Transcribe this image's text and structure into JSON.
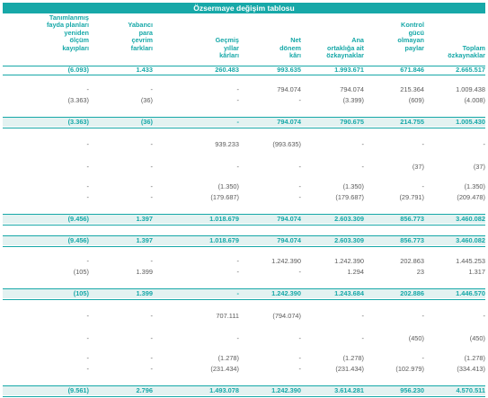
{
  "title": "Özsermaye değişim tablosu",
  "columns": [
    [
      "Tanımlanmış",
      "fayda planları",
      "yeniden",
      "ölçüm",
      "kayıpları"
    ],
    [
      "Yabancı",
      "para",
      "çevrim",
      "farkları"
    ],
    [
      "Geçmiş",
      "yıllar",
      "kârları"
    ],
    [
      "Net",
      "dönem",
      "kârı"
    ],
    [
      "Ana",
      "ortaklığa ait",
      "özkaynaklar"
    ],
    [
      "Kontrol",
      "gücü",
      "olmayan",
      "paylar"
    ],
    [
      "Toplam",
      "özkaynaklar"
    ]
  ],
  "rows": [
    {
      "bold": true,
      "cells": [
        "(6.093)",
        "1.433",
        "260.483",
        "993.635",
        "1.993.671",
        "671.846",
        "2.665.517"
      ]
    },
    {
      "bold": false,
      "cells": [
        "-",
        "-",
        "-",
        "794.074",
        "794.074",
        "215.364",
        "1.009.438"
      ]
    },
    {
      "bold": false,
      "cells": [
        "(3.363)",
        "(36)",
        "-",
        "-",
        "(3.399)",
        "(609)",
        "(4.008)"
      ]
    },
    {
      "bold": true,
      "cells": [
        "(3.363)",
        "(36)",
        "-",
        "794.074",
        "790.675",
        "214.755",
        "1.005.430"
      ]
    },
    {
      "bold": false,
      "cells": [
        "-",
        "-",
        "939.233",
        "(993.635)",
        "-",
        "-",
        "-"
      ]
    },
    {
      "bold": false,
      "cells": [
        "-",
        "-",
        "-",
        "-",
        "-",
        "(37)",
        "(37)"
      ]
    },
    {
      "bold": false,
      "cells": [
        "-",
        "-",
        "(1.350)",
        "-",
        "(1.350)",
        "-",
        "(1.350)"
      ]
    },
    {
      "bold": false,
      "cells": [
        "-",
        "-",
        "(179.687)",
        "-",
        "(179.687)",
        "(29.791)",
        "(209.478)"
      ]
    },
    {
      "bold": true,
      "cells": [
        "(9.456)",
        "1.397",
        "1.018.679",
        "794.074",
        "2.603.309",
        "856.773",
        "3.460.082"
      ]
    },
    {
      "bold": true,
      "cells": [
        "(9.456)",
        "1.397",
        "1.018.679",
        "794.074",
        "2.603.309",
        "856.773",
        "3.460.082"
      ]
    },
    {
      "bold": false,
      "cells": [
        "-",
        "-",
        "-",
        "1.242.390",
        "1.242.390",
        "202.863",
        "1.445.253"
      ]
    },
    {
      "bold": false,
      "cells": [
        "(105)",
        "1.399",
        "-",
        "-",
        "1.294",
        "23",
        "1.317"
      ]
    },
    {
      "bold": true,
      "cells": [
        "(105)",
        "1.399",
        "-",
        "1.242.390",
        "1.243.684",
        "202.886",
        "1.446.570"
      ]
    },
    {
      "bold": false,
      "cells": [
        "-",
        "-",
        "707.111",
        "(794.074)",
        "-",
        "-",
        "-"
      ]
    },
    {
      "bold": false,
      "cells": [
        "-",
        "-",
        "-",
        "-",
        "-",
        "(450)",
        "(450)"
      ]
    },
    {
      "bold": false,
      "cells": [
        "-",
        "-",
        "(1.278)",
        "-",
        "(1.278)",
        "-",
        "(1.278)"
      ]
    },
    {
      "bold": false,
      "cells": [
        "-",
        "-",
        "(231.434)",
        "-",
        "(231.434)",
        "(102.979)",
        "(334.413)"
      ]
    },
    {
      "bold": true,
      "cells": [
        "(9.561)",
        "2.796",
        "1.493.078",
        "1.242.390",
        "3.614.281",
        "956.230",
        "4.570.511"
      ]
    }
  ]
}
